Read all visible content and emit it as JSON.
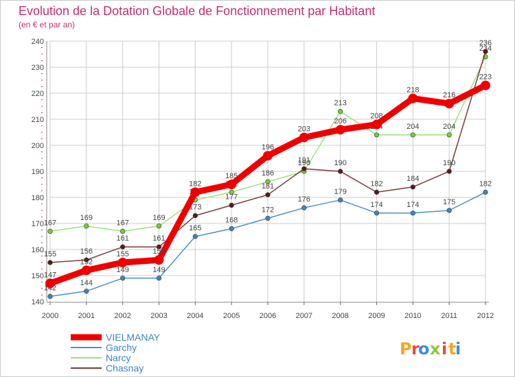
{
  "chart_data": {
    "type": "line",
    "title": "Evolution de la Dotation Globale de Fonctionnement par Habitant",
    "subtitle": "(en € et par an)",
    "xlabel": "",
    "ylabel": "",
    "categories": [
      "2000",
      "2001",
      "2002",
      "2003",
      "2004",
      "2005",
      "2006",
      "2007",
      "2008",
      "2009",
      "2010",
      "2011",
      "2012"
    ],
    "ylim": [
      140,
      240
    ],
    "yticks": [
      140,
      150,
      160,
      170,
      180,
      190,
      200,
      210,
      220,
      230,
      240
    ],
    "grid": true,
    "legend_position": "bottom-left",
    "series": [
      {
        "name": "Garchy",
        "color": "#4a90c8",
        "point_color": "#3d85c6",
        "values": [
          142,
          144,
          149,
          149,
          165,
          168,
          172,
          176,
          179,
          174,
          174,
          175,
          182
        ]
      },
      {
        "name": "Narcy",
        "color": "#99e27a",
        "point_color": "#77cc33",
        "values": [
          167,
          169,
          167,
          169,
          179,
          182,
          186,
          190,
          213,
          204,
          204,
          204,
          234
        ]
      },
      {
        "name": "Chasnay",
        "color": "#7a3b3b",
        "point_color": "#5a1a1a",
        "values": [
          155,
          156,
          161,
          161,
          173,
          177,
          181,
          191,
          190,
          182,
          184,
          190,
          236
        ]
      },
      {
        "name": "VIELMANAY",
        "color": "#ee0000",
        "point_color": "#ee0000",
        "values": [
          147,
          152,
          155,
          156,
          182,
          185,
          196,
          203,
          206,
          208,
          218,
          216,
          223
        ]
      }
    ],
    "legend_order": [
      "VIELMANAY",
      "Garchy",
      "Narcy",
      "Chasnay"
    ],
    "point_labels": {
      "VIELMANAY": [
        "147",
        "152",
        "155",
        "156",
        "182",
        "185",
        "196",
        "203",
        "206",
        "208",
        "218",
        "216",
        "223"
      ],
      "Garchy": [
        "142",
        "144",
        "149",
        "149",
        "165",
        "168",
        "172",
        "176",
        "179",
        "174",
        "174",
        "175",
        "182"
      ],
      "Narcy": [
        "167",
        "169",
        "167",
        "169",
        "179",
        "182",
        "186",
        "190",
        "213",
        "204",
        "204",
        "204",
        "234"
      ],
      "Chasnay": [
        "155",
        "156",
        "161",
        "161",
        "173",
        "177",
        "181",
        "191",
        "190",
        "182",
        "184",
        "190",
        "236"
      ]
    }
  },
  "brand": {
    "text": "Proxiti",
    "letters": [
      "P",
      "r",
      "o",
      "x",
      "i",
      "t",
      "i"
    ],
    "colors": [
      "#f5a623",
      "#e84c3d",
      "#3c8dde",
      "#8cc63f",
      "#e84c3d",
      "#f5a623",
      "#3c8dde"
    ]
  },
  "colors": {
    "title": "#cc2a6e",
    "axis": "#555555",
    "grid": "#cccccc"
  }
}
